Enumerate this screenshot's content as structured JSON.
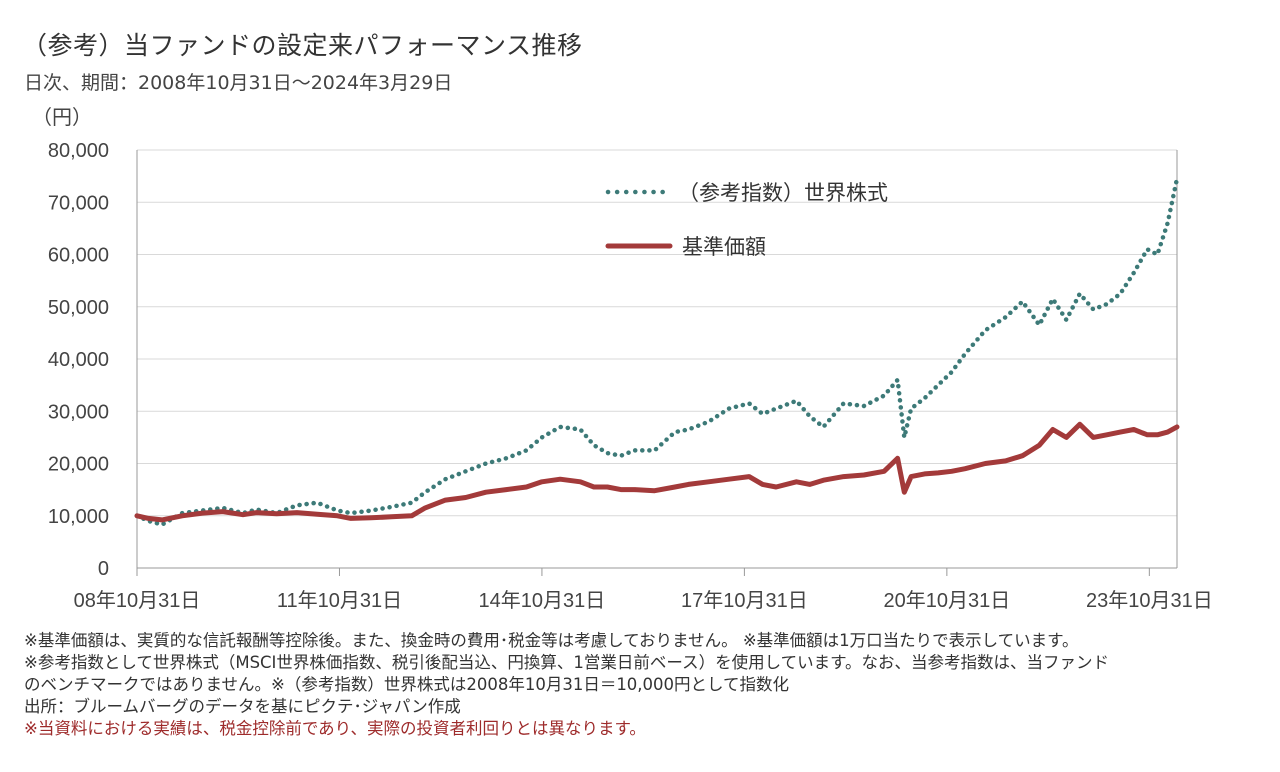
{
  "header": {
    "title": "（参考）当ファンドの設定来パフォーマンス推移",
    "subtitle": "日次、期間：2008年10月31日～2024年3月29日"
  },
  "colors": {
    "index_series": "#3d7a78",
    "nav_series": "#a33a3a",
    "grid": "#d9d9d9",
    "axis": "#999999",
    "warning_text": "#9e2b2b"
  },
  "chart_data": {
    "type": "line",
    "ylabel": "（円）",
    "ylim": [
      0,
      80000
    ],
    "yticks": [
      0,
      10000,
      20000,
      30000,
      40000,
      50000,
      60000,
      70000,
      80000
    ],
    "ytick_labels": [
      "0",
      "10,000",
      "20,000",
      "30,000",
      "40,000",
      "50,000",
      "60,000",
      "70,000",
      "80,000"
    ],
    "xlim": [
      2008.83,
      2024.24
    ],
    "xticks": [
      2008.83,
      2011.83,
      2014.83,
      2017.83,
      2020.83,
      2023.83
    ],
    "xtick_labels": [
      "08年10月31日",
      "11年10月31日",
      "14年10月31日",
      "17年10月31日",
      "20年10月31日",
      "23年10月31日"
    ],
    "grid": true,
    "legend_position": "top-center",
    "series": [
      {
        "name": "（参考指数）世界株式",
        "style": "dotted",
        "x": [
          2008.83,
          2009.0,
          2009.2,
          2009.5,
          2009.8,
          2010.1,
          2010.4,
          2010.6,
          2010.9,
          2011.2,
          2011.5,
          2011.8,
          2012.0,
          2012.3,
          2012.6,
          2012.9,
          2013.1,
          2013.4,
          2013.7,
          2014.0,
          2014.3,
          2014.6,
          2014.83,
          2015.1,
          2015.4,
          2015.6,
          2015.8,
          2016.0,
          2016.2,
          2016.5,
          2016.8,
          2017.0,
          2017.3,
          2017.6,
          2017.9,
          2018.1,
          2018.3,
          2018.6,
          2018.8,
          2019.0,
          2019.3,
          2019.6,
          2019.9,
          2020.1,
          2020.2,
          2020.3,
          2020.5,
          2020.7,
          2020.9,
          2021.1,
          2021.4,
          2021.7,
          2021.95,
          2022.2,
          2022.4,
          2022.6,
          2022.8,
          2023.0,
          2023.2,
          2023.4,
          2023.6,
          2023.8,
          2023.95,
          2024.1,
          2024.24
        ],
        "y": [
          10000,
          9000,
          8300,
          10500,
          11000,
          11500,
          10500,
          11200,
          10500,
          12000,
          12500,
          11000,
          10500,
          11000,
          11700,
          12500,
          14500,
          17000,
          18500,
          20000,
          21000,
          22500,
          25000,
          27000,
          26500,
          23500,
          22000,
          21500,
          22500,
          22500,
          26000,
          26500,
          28000,
          30500,
          31500,
          29500,
          30500,
          32000,
          29000,
          27000,
          31500,
          31000,
          33000,
          36000,
          25000,
          30500,
          32500,
          35000,
          37500,
          41000,
          45500,
          48000,
          51000,
          46500,
          51500,
          47500,
          52500,
          49500,
          50500,
          52500,
          56500,
          61000,
          60000,
          66000,
          74500
        ]
      },
      {
        "name": "基準価額",
        "style": "solid",
        "x": [
          2008.83,
          2009.0,
          2009.2,
          2009.5,
          2009.8,
          2010.1,
          2010.4,
          2010.6,
          2010.9,
          2011.2,
          2011.5,
          2011.8,
          2012.0,
          2012.3,
          2012.6,
          2012.9,
          2013.1,
          2013.4,
          2013.7,
          2014.0,
          2014.3,
          2014.6,
          2014.83,
          2015.1,
          2015.4,
          2015.6,
          2015.8,
          2016.0,
          2016.2,
          2016.5,
          2016.8,
          2017.0,
          2017.3,
          2017.6,
          2017.9,
          2018.1,
          2018.3,
          2018.6,
          2018.8,
          2019.0,
          2019.3,
          2019.6,
          2019.9,
          2020.1,
          2020.2,
          2020.3,
          2020.5,
          2020.7,
          2020.9,
          2021.1,
          2021.4,
          2021.7,
          2021.95,
          2022.2,
          2022.4,
          2022.6,
          2022.8,
          2023.0,
          2023.2,
          2023.4,
          2023.6,
          2023.8,
          2023.95,
          2024.1,
          2024.24
        ],
        "y": [
          10000,
          9500,
          9200,
          10000,
          10500,
          10800,
          10200,
          10600,
          10400,
          10600,
          10300,
          10000,
          9500,
          9600,
          9800,
          10000,
          11500,
          13000,
          13500,
          14500,
          15000,
          15500,
          16500,
          17000,
          16500,
          15500,
          15500,
          15000,
          15000,
          14800,
          15500,
          16000,
          16500,
          17000,
          17500,
          16000,
          15500,
          16500,
          16000,
          16800,
          17500,
          17800,
          18500,
          21000,
          14500,
          17500,
          18000,
          18200,
          18500,
          19000,
          20000,
          20500,
          21500,
          23500,
          26500,
          25000,
          27500,
          25000,
          25500,
          26000,
          26500,
          25500,
          25500,
          26000,
          27000
        ]
      }
    ]
  },
  "notes": {
    "line1": "※基準価額は、実質的な信託報酬等控除後。また、換金時の費用･税金等は考慮しておりません。 ※基準価額は1万口当たりで表示しています。",
    "line2": "※参考指数として世界株式（MSCI世界株価指数、税引後配当込、円換算、1営業日前ベース）を使用しています。なお、当参考指数は、当ファンド",
    "line3": "のベンチマークではありません。※（参考指数）世界株式は2008年10月31日＝10,000円として指数化",
    "line4": "出所：ブルームバーグのデータを基にピクテ･ジャパン作成",
    "warning": "※当資料における実績は、税金控除前であり、実際の投資者利回りとは異なります。"
  }
}
